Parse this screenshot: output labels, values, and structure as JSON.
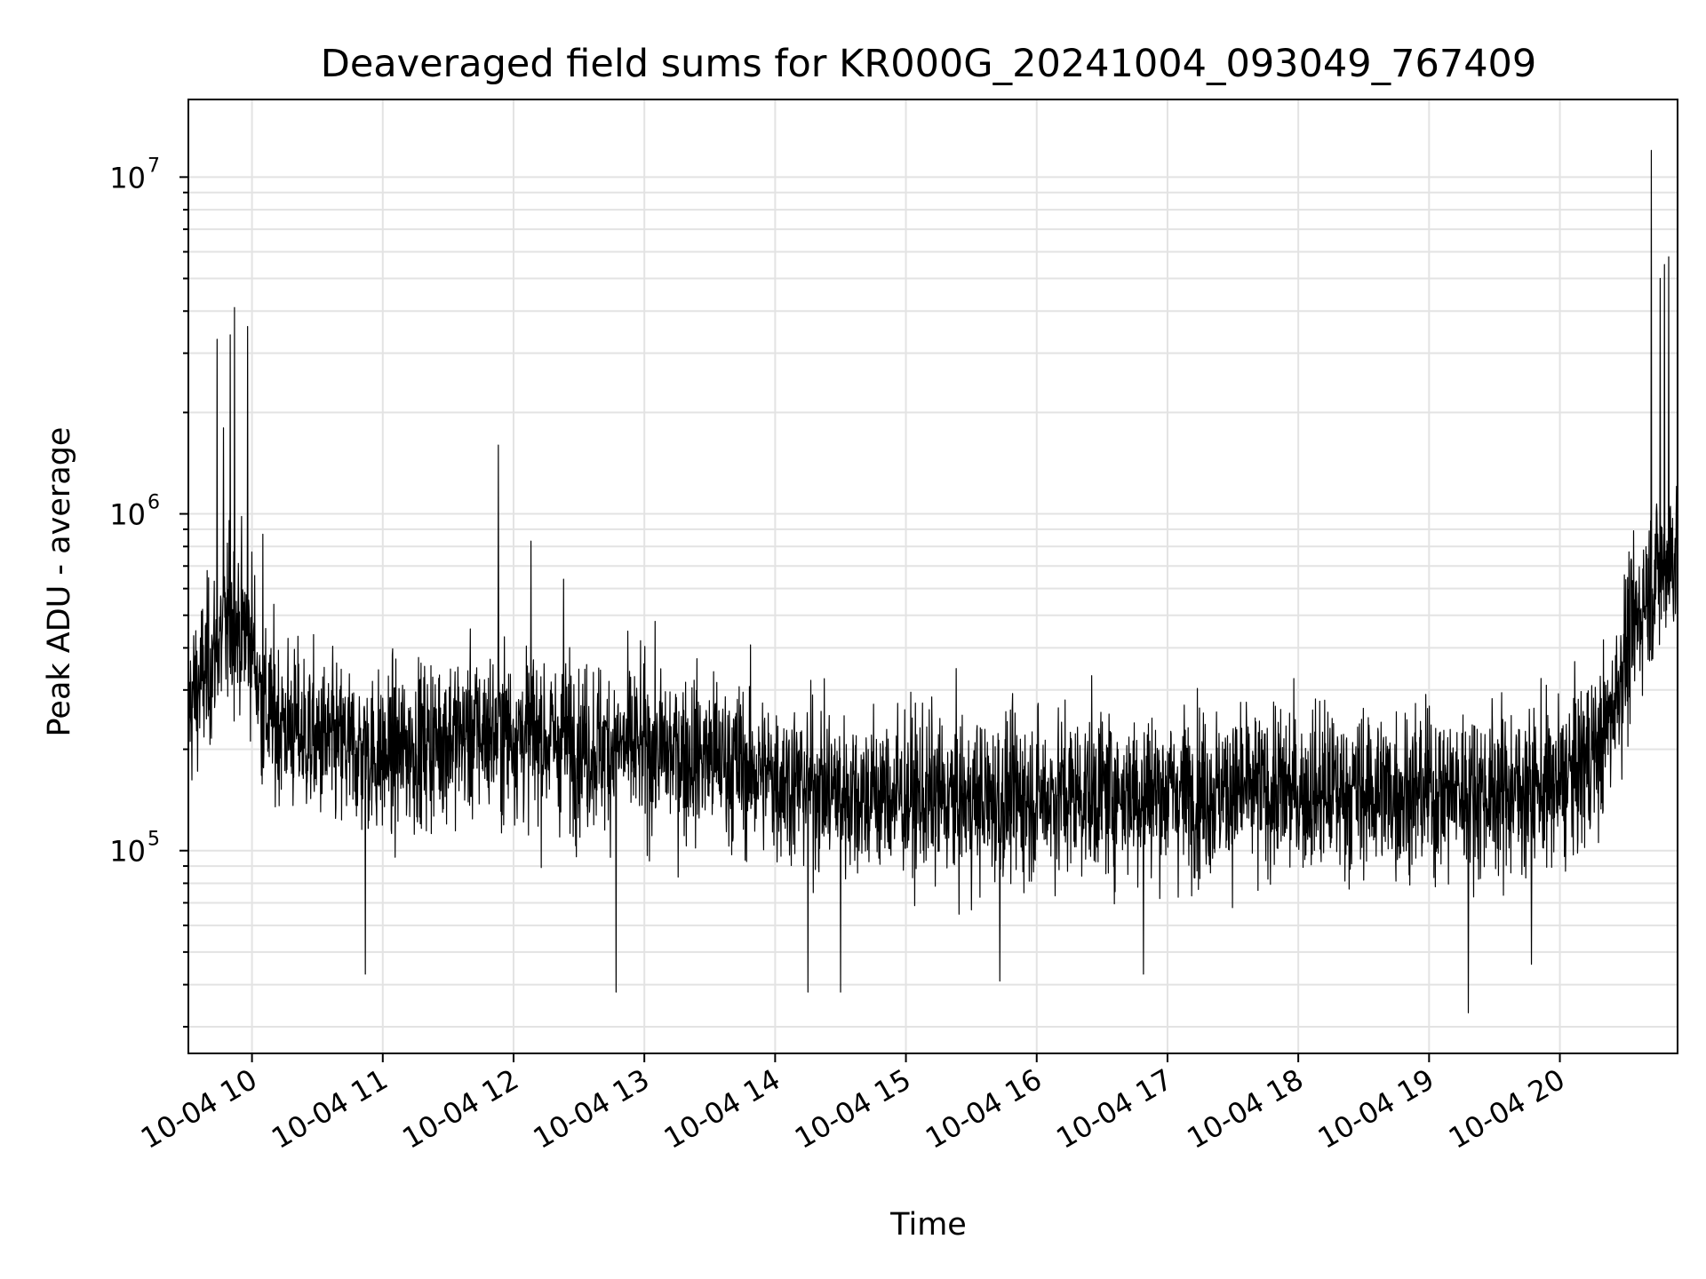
{
  "chart_data": {
    "type": "line",
    "title": "Deaveraged field sums for KR000G_20241004_093049_767409",
    "xlabel": "Time",
    "ylabel": "Peak ADU - average",
    "yscale": "log",
    "grid": true,
    "xlim": [
      "2024-10-04 09:30:49",
      "2024-10-04 20:54:00"
    ],
    "ylim": [
      25000,
      17000000
    ],
    "x_ticks": [
      {
        "label": "10-04 10",
        "time": "2024-10-04 10:00"
      },
      {
        "label": "10-04 11",
        "time": "2024-10-04 11:00"
      },
      {
        "label": "10-04 12",
        "time": "2024-10-04 12:00"
      },
      {
        "label": "10-04 13",
        "time": "2024-10-04 13:00"
      },
      {
        "label": "10-04 14",
        "time": "2024-10-04 14:00"
      },
      {
        "label": "10-04 15",
        "time": "2024-10-04 15:00"
      },
      {
        "label": "10-04 16",
        "time": "2024-10-04 16:00"
      },
      {
        "label": "10-04 17",
        "time": "2024-10-04 17:00"
      },
      {
        "label": "10-04 18",
        "time": "2024-10-04 18:00"
      },
      {
        "label": "10-04 19",
        "time": "2024-10-04 19:00"
      },
      {
        "label": "10-04 20",
        "time": "2024-10-04 20:00"
      }
    ],
    "y_ticks": [
      {
        "base": "10",
        "exp": "5",
        "value": 100000
      },
      {
        "base": "10",
        "exp": "6",
        "value": 1000000
      },
      {
        "base": "10",
        "exp": "7",
        "value": 10000000
      }
    ],
    "series": [
      {
        "color": "#000000",
        "trend": [
          {
            "x": "2024-10-04 09:30",
            "y": 260000
          },
          {
            "x": "2024-10-04 09:40",
            "y": 350000
          },
          {
            "x": "2024-10-04 09:50",
            "y": 480000
          },
          {
            "x": "2024-10-04 10:00",
            "y": 430000
          },
          {
            "x": "2024-10-04 10:05",
            "y": 260000
          },
          {
            "x": "2024-10-04 10:30",
            "y": 210000
          },
          {
            "x": "2024-10-04 11:00",
            "y": 190000
          },
          {
            "x": "2024-10-04 11:30",
            "y": 220000
          },
          {
            "x": "2024-10-04 12:00",
            "y": 225000
          },
          {
            "x": "2024-10-04 12:30",
            "y": 205000
          },
          {
            "x": "2024-10-04 13:00",
            "y": 200000
          },
          {
            "x": "2024-10-04 13:30",
            "y": 190000
          },
          {
            "x": "2024-10-04 14:00",
            "y": 165000
          },
          {
            "x": "2024-10-04 14:30",
            "y": 150000
          },
          {
            "x": "2024-10-04 15:00",
            "y": 145000
          },
          {
            "x": "2024-10-04 15:30",
            "y": 140000
          },
          {
            "x": "2024-10-04 16:00",
            "y": 145000
          },
          {
            "x": "2024-10-04 16:30",
            "y": 150000
          },
          {
            "x": "2024-10-04 17:00",
            "y": 150000
          },
          {
            "x": "2024-10-04 17:30",
            "y": 150000
          },
          {
            "x": "2024-10-04 18:00",
            "y": 150000
          },
          {
            "x": "2024-10-04 18:30",
            "y": 150000
          },
          {
            "x": "2024-10-04 19:00",
            "y": 150000
          },
          {
            "x": "2024-10-04 19:30",
            "y": 150000
          },
          {
            "x": "2024-10-04 20:00",
            "y": 155000
          },
          {
            "x": "2024-10-04 20:20",
            "y": 210000
          },
          {
            "x": "2024-10-04 20:30",
            "y": 380000
          },
          {
            "x": "2024-10-04 20:40",
            "y": 600000
          },
          {
            "x": "2024-10-04 20:54",
            "y": 800000
          }
        ],
        "spikes": [
          {
            "x": "2024-10-04 09:44",
            "y": 3300000
          },
          {
            "x": "2024-10-04 09:50",
            "y": 3400000
          },
          {
            "x": "2024-10-04 09:52",
            "y": 4100000
          },
          {
            "x": "2024-10-04 09:58",
            "y": 3600000
          },
          {
            "x": "2024-10-04 09:47",
            "y": 1800000
          },
          {
            "x": "2024-10-04 10:05",
            "y": 870000
          },
          {
            "x": "2024-10-04 11:53",
            "y": 1600000
          },
          {
            "x": "2024-10-04 12:08",
            "y": 830000
          },
          {
            "x": "2024-10-04 12:23",
            "y": 640000
          },
          {
            "x": "2024-10-04 20:42",
            "y": 12000000
          },
          {
            "x": "2024-10-04 20:46",
            "y": 5000000
          },
          {
            "x": "2024-10-04 20:48",
            "y": 5500000
          },
          {
            "x": "2024-10-04 20:50",
            "y": 5800000
          },
          {
            "x": "2024-10-04 10:52",
            "y": 43000
          },
          {
            "x": "2024-10-04 12:47",
            "y": 38000
          },
          {
            "x": "2024-10-04 14:15",
            "y": 38000
          },
          {
            "x": "2024-10-04 14:30",
            "y": 38000
          },
          {
            "x": "2024-10-04 15:43",
            "y": 41000
          },
          {
            "x": "2024-10-04 16:49",
            "y": 43000
          },
          {
            "x": "2024-10-04 19:18",
            "y": 33000
          },
          {
            "x": "2024-10-04 19:47",
            "y": 46000
          }
        ]
      }
    ]
  }
}
